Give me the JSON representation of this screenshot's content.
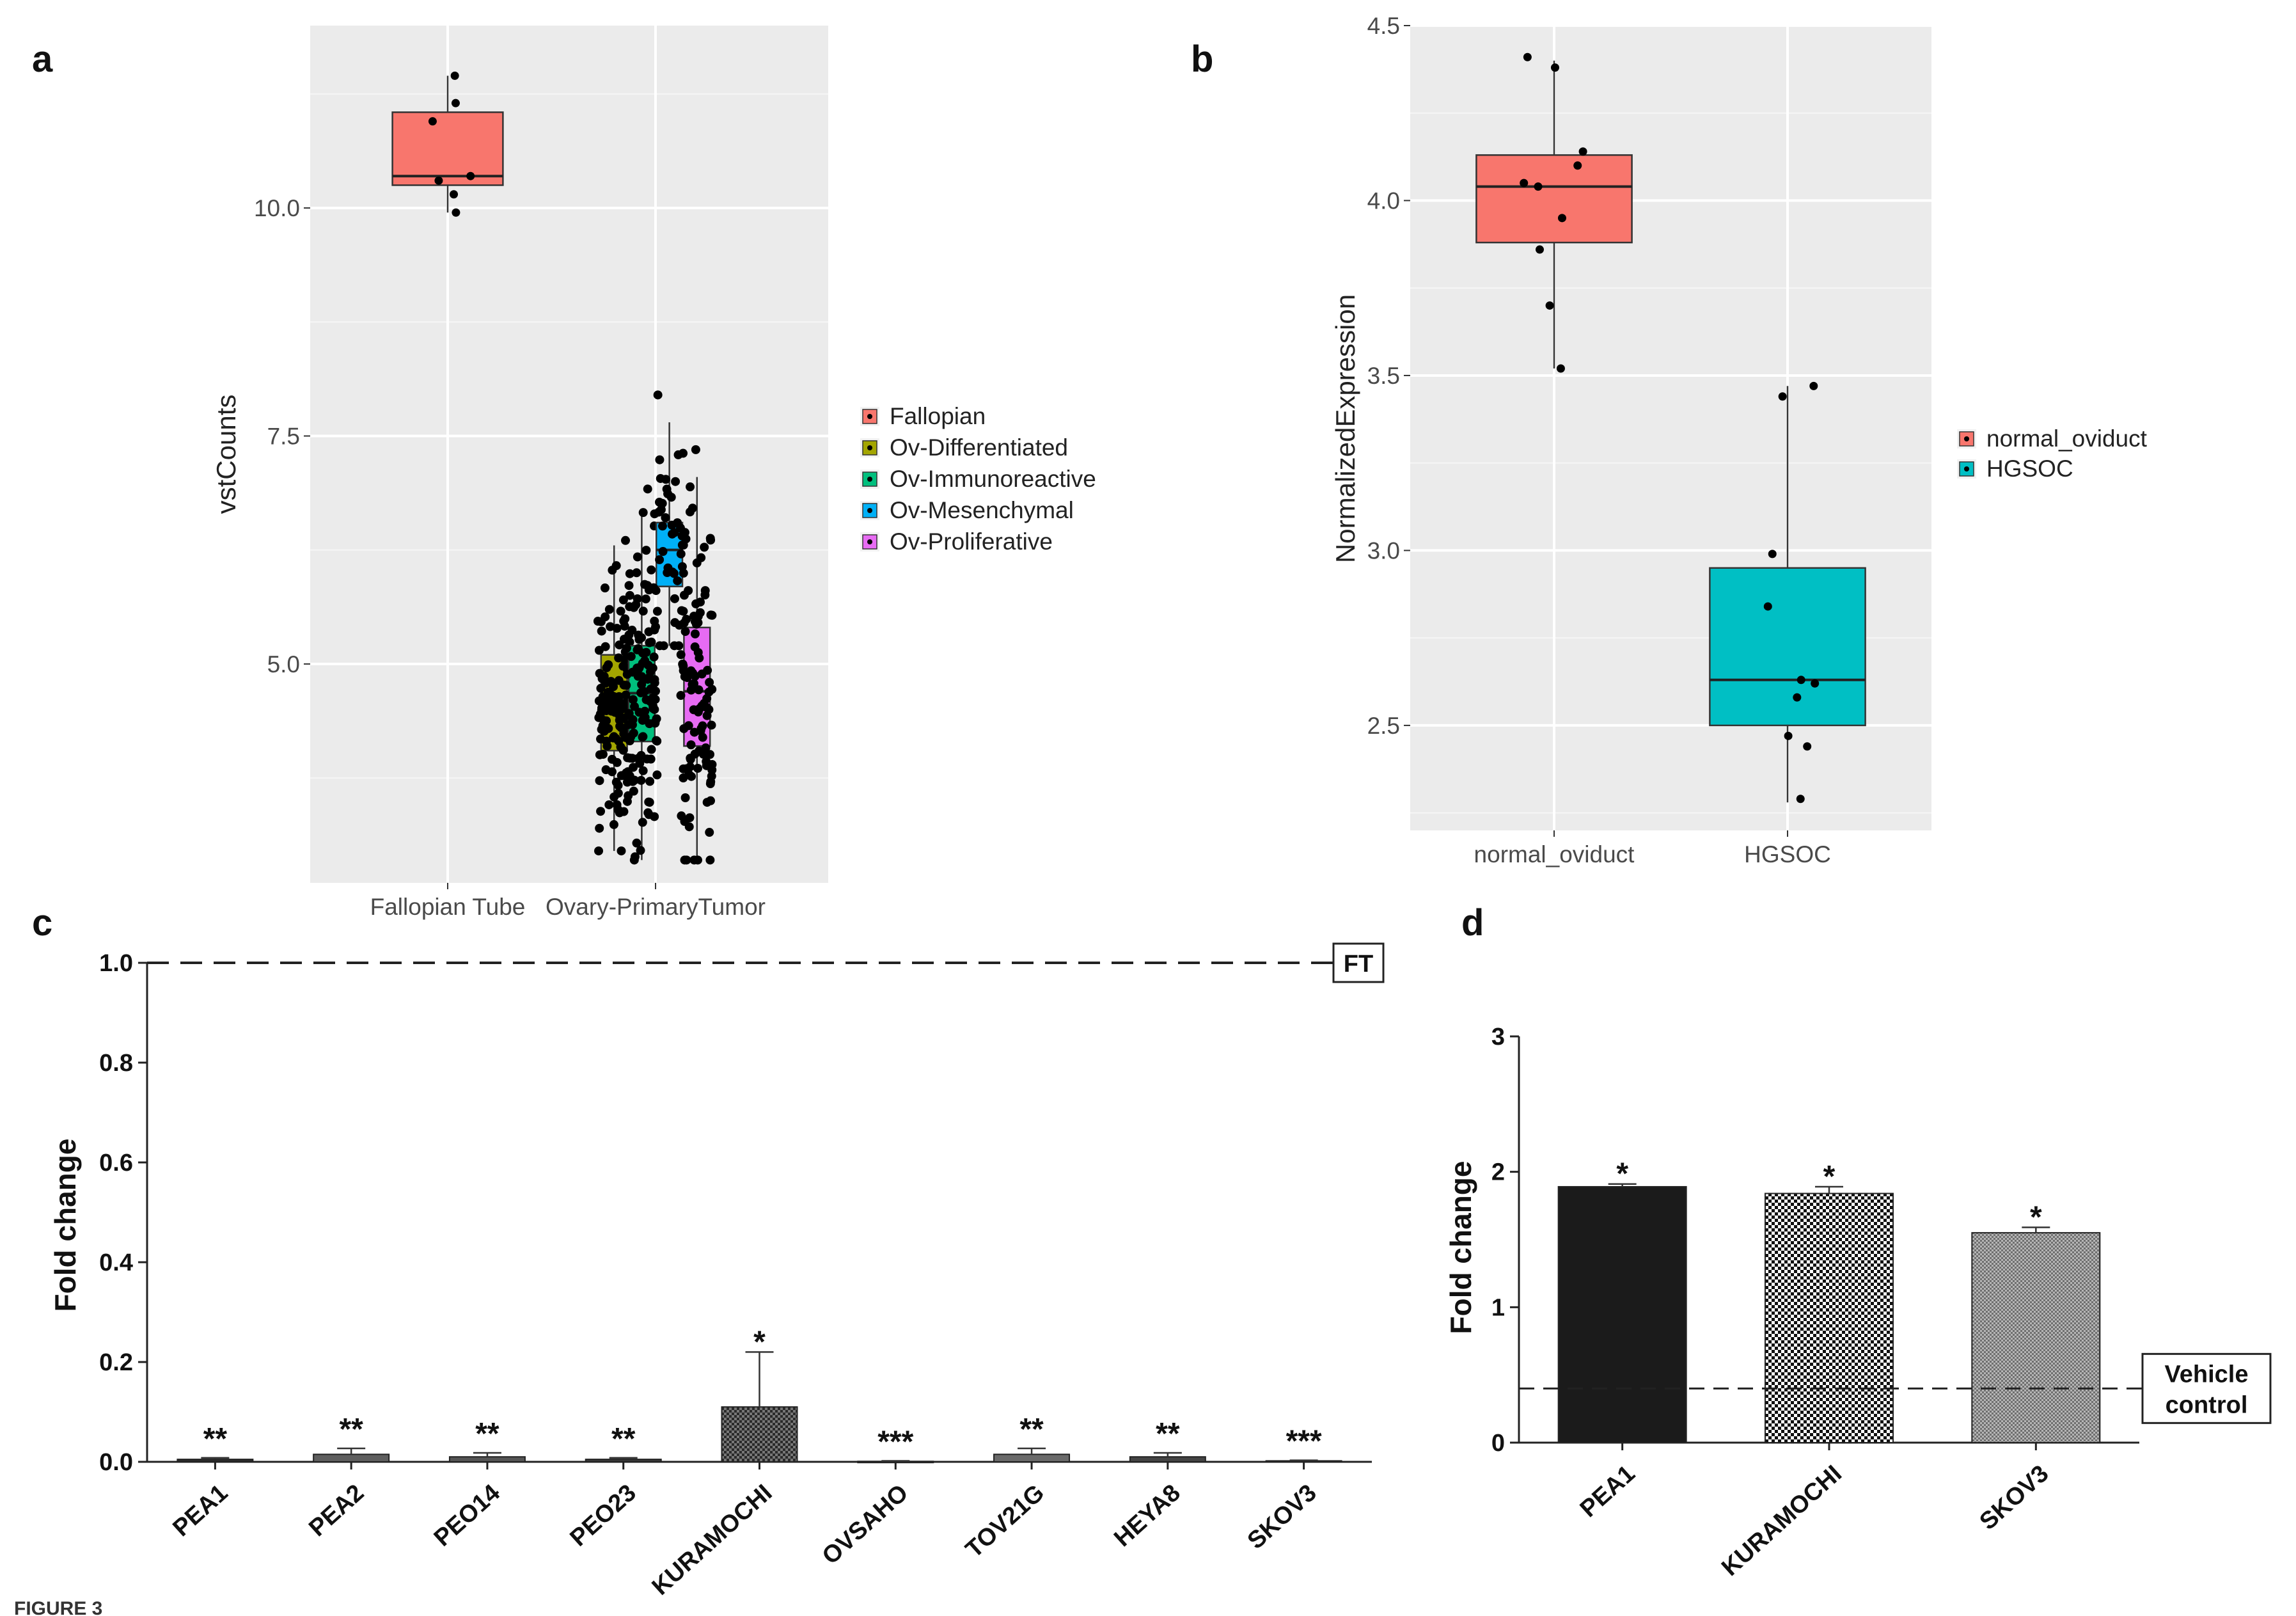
{
  "figure_label": "FIGURE 3",
  "colors": {
    "fallopian": "#F8766D",
    "ov_differentiated": "#A3A500",
    "ov_immunoreactive": "#00BF7D",
    "ov_mesenchymal": "#00B0F6",
    "ov_proliferative": "#E76BF3",
    "normal_oviduct": "#F8766D",
    "hgsoc": "#00BFC4",
    "panel_bg": "#EBEBEB",
    "bar_black": "#1b1b1b",
    "bar_dark": "#555555",
    "bar_mid": "#8f8f8f"
  },
  "chart_data": [
    {
      "panel": "a",
      "type": "box",
      "ylabel": "vstCounts",
      "xlabel": "",
      "categories": [
        "Fallopian Tube",
        "Ovary-PrimaryTumor"
      ],
      "yticks": [
        "5.0",
        "7.5",
        "10.0"
      ],
      "ylim": [
        2.6,
        12.0
      ],
      "legend": [
        "Fallopian",
        "Ov-Differentiated",
        "Ov-Immunoreactive",
        "Ov-Mesenchymal",
        "Ov-Proliferative"
      ],
      "boxes": [
        {
          "name": "Fallopian",
          "category": 0,
          "offset": 0.0,
          "width": 0.72,
          "q1": 10.25,
          "median": 10.35,
          "q3": 11.05,
          "whisker_low": 9.95,
          "whisker_high": 11.45,
          "points": [
            11.45,
            10.3,
            10.15,
            10.35,
            9.95,
            11.15,
            10.95
          ]
        },
        {
          "name": "Ov-Differentiated",
          "category": 1,
          "offset": -0.27,
          "width": 0.17,
          "q1": 4.05,
          "median": 4.62,
          "q3": 5.1,
          "whisker_low": 2.95,
          "whisker_high": 6.3,
          "n_points": 120
        },
        {
          "name": "Ov-Immunoreactive",
          "category": 1,
          "offset": -0.09,
          "width": 0.17,
          "q1": 4.15,
          "median": 4.68,
          "q3": 5.2,
          "whisker_low": 2.85,
          "whisker_high": 6.7,
          "n_points": 120
        },
        {
          "name": "Ov-Mesenchymal",
          "category": 1,
          "offset": 0.09,
          "width": 0.17,
          "q1": 5.85,
          "median": 6.25,
          "q3": 6.55,
          "whisker_low": 5.2,
          "whisker_high": 7.65,
          "n_points": 45
        },
        {
          "name": "Ov-Proliferative",
          "category": 1,
          "offset": 0.27,
          "width": 0.17,
          "q1": 4.1,
          "median": 4.7,
          "q3": 5.4,
          "whisker_low": 2.85,
          "whisker_high": 7.05,
          "n_points": 110
        }
      ]
    },
    {
      "panel": "b",
      "type": "box",
      "ylabel": "NormalizedExpression",
      "xlabel": "",
      "categories": [
        "normal_oviduct",
        "HGSOC"
      ],
      "yticks": [
        "2.5",
        "3.0",
        "3.5",
        "4.0",
        "4.5"
      ],
      "ylim": [
        2.2,
        4.5
      ],
      "legend": [
        "normal_oviduct",
        "HGSOC"
      ],
      "boxes": [
        {
          "name": "normal_oviduct",
          "category": 0,
          "q1": 3.88,
          "median": 4.04,
          "q3": 4.13,
          "whisker_low": 3.52,
          "whisker_high": 4.4,
          "points": [
            4.38,
            4.04,
            4.1,
            4.05,
            3.95,
            4.14,
            3.86,
            3.7,
            3.52,
            4.41
          ]
        },
        {
          "name": "HGSOC",
          "category": 1,
          "q1": 2.5,
          "median": 2.63,
          "q3": 2.95,
          "whisker_low": 2.28,
          "whisker_high": 3.47,
          "points": [
            3.47,
            2.99,
            2.63,
            2.58,
            2.44,
            2.62,
            2.84,
            3.44,
            2.47,
            2.29
          ]
        }
      ]
    },
    {
      "panel": "c",
      "type": "bar",
      "ylabel": "Fold change",
      "categories": [
        "PEA1",
        "PEA2",
        "PEO14",
        "PEO23",
        "KURAMOCHI",
        "OVSAHO",
        "TOV21G",
        "HEYA8",
        "SKOV3"
      ],
      "values": [
        0.005,
        0.015,
        0.01,
        0.005,
        0.11,
        0.001,
        0.015,
        0.01,
        0.002
      ],
      "errors": [
        0.003,
        0.012,
        0.008,
        0.003,
        0.11,
        0.001,
        0.012,
        0.008,
        0.001
      ],
      "significance": [
        "**",
        "**",
        "**",
        "**",
        "*",
        "***",
        "**",
        "**",
        "***"
      ],
      "yticks": [
        "0.0",
        "0.2",
        "0.4",
        "0.6",
        "0.8",
        "1.0"
      ],
      "ylim": [
        0,
        1.0
      ],
      "reference_line": 1.0,
      "reference_label": "FT"
    },
    {
      "panel": "d",
      "type": "bar",
      "ylabel": "Fold change",
      "categories": [
        "PEA1",
        "KURAMOCHI",
        "SKOV3"
      ],
      "values": [
        1.89,
        1.84,
        1.55
      ],
      "errors": [
        0.02,
        0.05,
        0.04
      ],
      "significance": [
        "*",
        "*",
        "*"
      ],
      "yticks": [
        "0",
        "1",
        "2",
        "3"
      ],
      "ylim": [
        0,
        3
      ],
      "reference_line": 0.4,
      "reference_label": [
        "Vehicle",
        "control"
      ]
    }
  ]
}
